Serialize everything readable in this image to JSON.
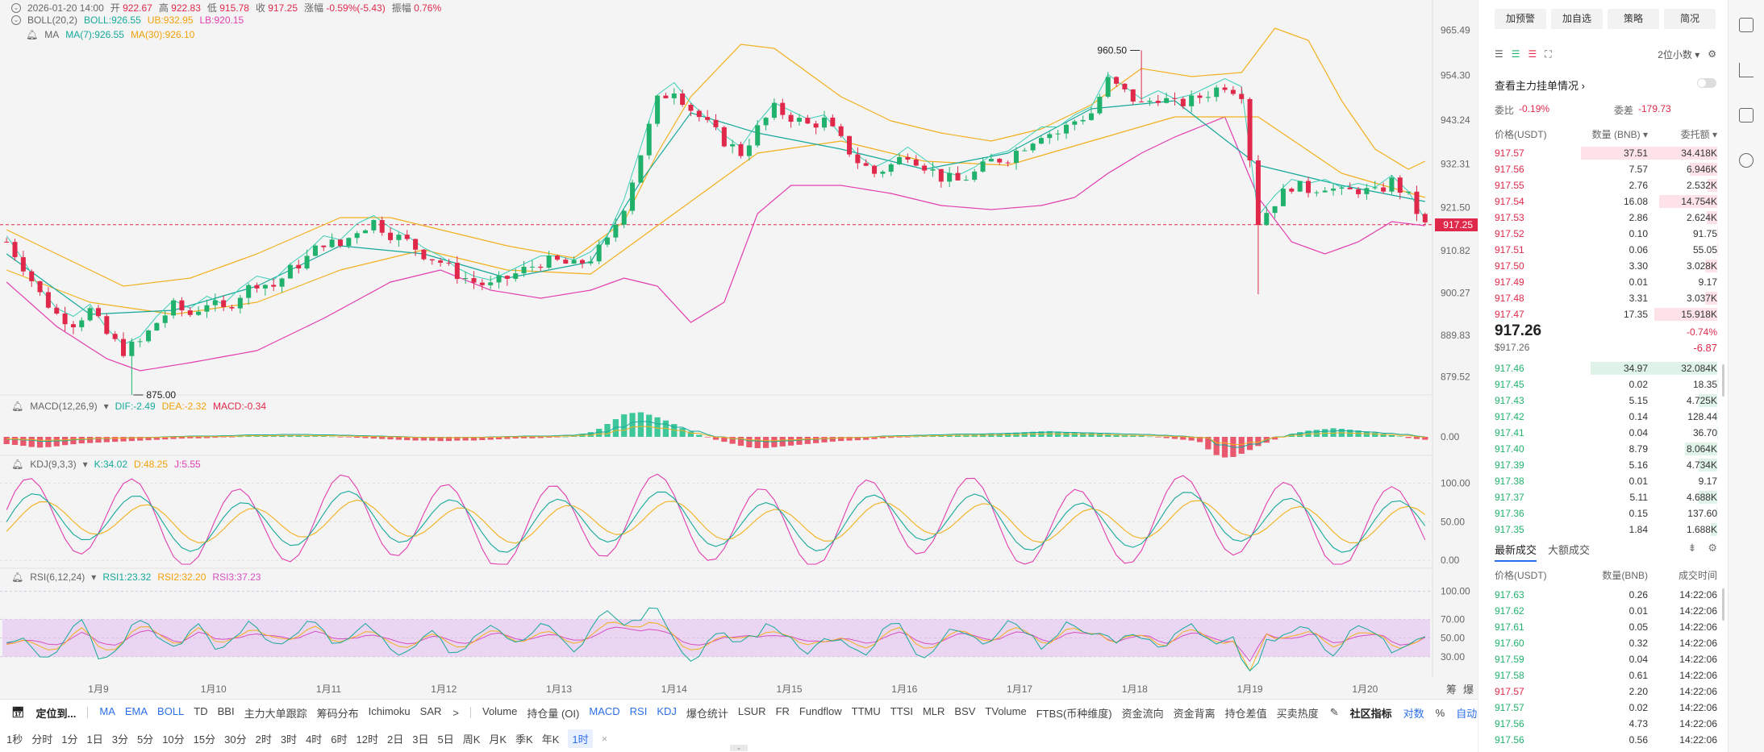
{
  "legend": {
    "ohlc": {
      "time": "2026-01-20 14:00",
      "open_label": "开",
      "open": "922.67",
      "high_label": "高",
      "high": "922.83",
      "low_label": "低",
      "low": "915.78",
      "close_label": "收",
      "close": "917.25",
      "change_label": "涨幅",
      "change": "-0.59%(-5.43)",
      "amp_label": "振幅",
      "amp": "0.76%"
    },
    "boll": {
      "name": "BOLL(20,2)",
      "boll": "BOLL:926.55",
      "ub": "UB:932.95",
      "lb": "LB:920.15"
    },
    "ma": {
      "name": "MA",
      "ma7": "MA(7):926.55",
      "ma30": "MA(30):926.10"
    },
    "macd": {
      "name": "MACD(12,26,9)",
      "dif": "DIF:-2.49",
      "dea": "DEA:-2.32",
      "macd": "MACD:-0.34"
    },
    "kdj": {
      "name": "KDJ(9,3,3)",
      "k": "K:34.02",
      "d": "D:48.25",
      "j": "J:5.55"
    },
    "rsi": {
      "name": "RSI(6,12,24)",
      "rsi1": "RSI1:23.32",
      "rsi2": "RSI2:32.20",
      "rsi3": "RSI3:37.23"
    }
  },
  "chart_data": {
    "type": "candlestick",
    "price_axis": [
      "965.49",
      "954.30",
      "943.24",
      "932.31",
      "921.50",
      "910.82",
      "900.27",
      "889.83",
      "879.52"
    ],
    "x_labels": [
      "1月9",
      "1月10",
      "1月11",
      "1月12",
      "1月13",
      "1月14",
      "1月15",
      "1月16",
      "1月17",
      "1月18",
      "1月19",
      "1月20"
    ],
    "current_price": "917.25",
    "high_marker": "960.50",
    "low_marker": "875.00",
    "ylim": [
      877,
      967
    ],
    "close_path": [
      [
        0,
        913
      ],
      [
        2,
        907
      ],
      [
        4,
        900
      ],
      [
        6,
        895
      ],
      [
        8,
        893
      ],
      [
        10,
        896
      ],
      [
        12,
        890
      ],
      [
        14,
        886
      ],
      [
        16,
        888
      ],
      [
        18,
        893
      ],
      [
        20,
        897
      ],
      [
        22,
        895
      ],
      [
        24,
        898
      ],
      [
        26,
        896
      ],
      [
        28,
        900
      ],
      [
        30,
        903
      ],
      [
        32,
        902
      ],
      [
        34,
        906
      ],
      [
        36,
        909
      ],
      [
        38,
        913
      ],
      [
        40,
        912
      ],
      [
        42,
        916
      ],
      [
        44,
        918
      ],
      [
        46,
        915
      ],
      [
        48,
        913
      ],
      [
        50,
        910
      ],
      [
        52,
        908
      ],
      [
        54,
        905
      ],
      [
        56,
        903
      ],
      [
        58,
        902
      ],
      [
        60,
        904
      ],
      [
        62,
        906
      ],
      [
        64,
        908
      ],
      [
        66,
        908
      ],
      [
        68,
        907
      ],
      [
        70,
        909
      ],
      [
        72,
        913
      ],
      [
        74,
        922
      ],
      [
        76,
        935
      ],
      [
        78,
        948
      ],
      [
        80,
        951
      ],
      [
        82,
        946
      ],
      [
        84,
        942
      ],
      [
        86,
        938
      ],
      [
        88,
        935
      ],
      [
        90,
        941
      ],
      [
        92,
        946
      ],
      [
        94,
        944
      ],
      [
        96,
        942
      ],
      [
        98,
        943
      ],
      [
        100,
        938
      ],
      [
        102,
        933
      ],
      [
        104,
        930
      ],
      [
        106,
        932
      ],
      [
        108,
        935
      ],
      [
        110,
        932
      ],
      [
        112,
        929
      ],
      [
        114,
        928
      ],
      [
        116,
        930
      ],
      [
        118,
        933
      ],
      [
        120,
        934
      ],
      [
        122,
        937
      ],
      [
        124,
        940
      ],
      [
        126,
        940
      ],
      [
        128,
        943
      ],
      [
        130,
        945
      ],
      [
        132,
        953
      ],
      [
        134,
        950
      ],
      [
        136,
        947
      ],
      [
        138,
        949
      ],
      [
        140,
        947
      ],
      [
        142,
        948
      ],
      [
        144,
        950
      ],
      [
        146,
        952
      ],
      [
        148,
        950
      ],
      [
        150,
        918
      ],
      [
        152,
        923
      ],
      [
        154,
        927
      ],
      [
        156,
        926
      ],
      [
        158,
        927
      ],
      [
        160,
        925
      ],
      [
        162,
        926
      ],
      [
        164,
        925
      ],
      [
        166,
        928
      ],
      [
        168,
        924
      ],
      [
        170,
        917
      ]
    ],
    "ma_slow_path": [
      [
        0,
        906
      ],
      [
        10,
        898
      ],
      [
        20,
        895
      ],
      [
        30,
        898
      ],
      [
        40,
        906
      ],
      [
        50,
        911
      ],
      [
        60,
        906
      ],
      [
        70,
        905
      ],
      [
        80,
        920
      ],
      [
        90,
        935
      ],
      [
        100,
        938
      ],
      [
        110,
        933
      ],
      [
        120,
        932
      ],
      [
        130,
        938
      ],
      [
        140,
        944
      ],
      [
        150,
        944
      ],
      [
        160,
        930
      ],
      [
        170,
        924
      ]
    ],
    "ma_fast_path": [
      [
        0,
        910
      ],
      [
        10,
        895
      ],
      [
        20,
        896
      ],
      [
        30,
        902
      ],
      [
        40,
        912
      ],
      [
        50,
        910
      ],
      [
        60,
        904
      ],
      [
        70,
        908
      ],
      [
        76,
        928
      ],
      [
        82,
        945
      ],
      [
        90,
        940
      ],
      [
        100,
        936
      ],
      [
        110,
        931
      ],
      [
        120,
        935
      ],
      [
        130,
        946
      ],
      [
        140,
        948
      ],
      [
        150,
        932
      ],
      [
        160,
        927
      ],
      [
        170,
        923
      ]
    ],
    "ub_path": [
      [
        0,
        916
      ],
      [
        8,
        908
      ],
      [
        14,
        902
      ],
      [
        22,
        904
      ],
      [
        30,
        910
      ],
      [
        40,
        919
      ],
      [
        46,
        919
      ],
      [
        52,
        916
      ],
      [
        60,
        912
      ],
      [
        68,
        909
      ],
      [
        74,
        918
      ],
      [
        78,
        935
      ],
      [
        82,
        949
      ],
      [
        88,
        962
      ],
      [
        92,
        961
      ],
      [
        96,
        955
      ],
      [
        100,
        949
      ],
      [
        106,
        943
      ],
      [
        112,
        940
      ],
      [
        118,
        938
      ],
      [
        124,
        941
      ],
      [
        130,
        947
      ],
      [
        136,
        956
      ],
      [
        142,
        954
      ],
      [
        148,
        955
      ],
      [
        152,
        966
      ],
      [
        156,
        963
      ],
      [
        160,
        948
      ],
      [
        164,
        936
      ],
      [
        168,
        931
      ],
      [
        170,
        933
      ]
    ],
    "lb_path": [
      [
        0,
        903
      ],
      [
        6,
        892
      ],
      [
        12,
        884
      ],
      [
        16,
        881
      ],
      [
        22,
        883
      ],
      [
        30,
        886
      ],
      [
        38,
        894
      ],
      [
        46,
        903
      ],
      [
        52,
        906
      ],
      [
        58,
        901
      ],
      [
        64,
        899
      ],
      [
        70,
        901
      ],
      [
        74,
        904
      ],
      [
        78,
        902
      ],
      [
        82,
        893
      ],
      [
        86,
        898
      ],
      [
        90,
        920
      ],
      [
        94,
        927
      ],
      [
        100,
        927
      ],
      [
        106,
        925
      ],
      [
        112,
        922
      ],
      [
        118,
        921
      ],
      [
        124,
        922
      ],
      [
        128,
        924
      ],
      [
        132,
        930
      ],
      [
        136,
        935
      ],
      [
        140,
        939
      ],
      [
        146,
        944
      ],
      [
        150,
        924
      ],
      [
        154,
        913
      ],
      [
        158,
        910
      ],
      [
        162,
        913
      ],
      [
        166,
        918
      ],
      [
        170,
        917
      ]
    ],
    "macd": {
      "axis": "0.00",
      "hist": [
        -1.0,
        -1.2,
        -1.5,
        -1.4,
        -1.1,
        -0.9,
        -0.8,
        -0.7,
        -0.6,
        -0.5,
        -0.4,
        -0.3,
        -0.2,
        -0.2,
        -0.1,
        0.0,
        0.1,
        0.1,
        0.2,
        0.2,
        0.1,
        0.1,
        0.0,
        -0.1,
        -0.2,
        -0.3,
        -0.4,
        -0.5,
        -0.5,
        -0.6,
        -0.5,
        -0.5,
        -0.4,
        -0.3,
        -0.2,
        -0.2,
        -0.1,
        0.0,
        0.3,
        0.8,
        2.0,
        3.2,
        3.4,
        2.8,
        2.0,
        1.0,
        0.2,
        -0.4,
        -0.9,
        -1.4,
        -1.6,
        -1.4,
        -1.2,
        -1.0,
        -0.8,
        -0.6,
        -0.5,
        -0.4,
        -0.2,
        -0.1,
        0.0,
        0.1,
        0.2,
        0.3,
        0.3,
        0.4,
        0.5,
        0.6,
        0.7,
        0.8,
        0.7,
        0.6,
        0.5,
        0.4,
        0.3,
        0.2,
        0.0,
        -0.2,
        -0.4,
        -0.6,
        -2.4,
        -3.0,
        -2.2,
        -1.2,
        -0.4,
        0.3,
        0.8,
        1.0,
        1.2,
        1.0,
        0.8,
        0.5,
        0.2,
        -0.2,
        -0.4
      ]
    },
    "kdj": {
      "axis": [
        "100.00",
        "50.00",
        "0.00"
      ],
      "ylim": [
        -5,
        115
      ]
    },
    "rsi": {
      "axis": [
        "100.00",
        "70.00",
        "50.00",
        "30.00"
      ],
      "ylim": [
        10,
        110
      ],
      "band": [
        30,
        70
      ]
    }
  },
  "toolbar1": {
    "locate": "定位到...",
    "main_indicators": [
      "MA",
      "EMA",
      "BOLL",
      "TD",
      "BBI",
      "主力大单跟踪",
      "筹码分布",
      "Ichimoku",
      "SAR"
    ],
    "more": ">",
    "sub_indicators": [
      "Volume",
      "持仓量 (OI)",
      "MACD",
      "RSI",
      "KDJ",
      "爆仓统计",
      "LSUR",
      "FR",
      "Fundflow",
      "TTMU",
      "TTSI",
      "MLR",
      "BSV",
      "TVolume",
      "FTBS(币种维度)",
      "资金流向",
      "资金背离",
      "持仓差值",
      "买卖热度"
    ],
    "community": "社区指标",
    "log": "对数",
    "percent": "%",
    "auto": "自动"
  },
  "toolbar2": {
    "intervals": [
      "1秒",
      "分时",
      "1分",
      "1日",
      "3分",
      "5分",
      "10分",
      "15分",
      "30分",
      "2时",
      "3时",
      "4时",
      "6时",
      "12时",
      "2日",
      "3日",
      "5日",
      "周K",
      "月K",
      "季K",
      "年K",
      "1时"
    ],
    "close": "×"
  },
  "corner": {
    "label1": "筹",
    "label2": "爆"
  },
  "panel": {
    "buttons": [
      "加预警",
      "加自选",
      "策略",
      "简况"
    ],
    "precision": "2位小数",
    "orderbook_title": "查看主力挂单情况",
    "ratio_label": "委比",
    "ratio": "-0.19%",
    "diff_label": "委差",
    "diff": "-179.73",
    "headers": [
      "价格(USDT)",
      "数量 (BNB)",
      "委托额"
    ],
    "asks": [
      {
        "price": "917.57",
        "qty": "37.51",
        "amount": "34.418K"
      },
      {
        "price": "917.56",
        "qty": "7.57",
        "amount": "6.946K"
      },
      {
        "price": "917.55",
        "qty": "2.76",
        "amount": "2.532K"
      },
      {
        "price": "917.54",
        "qty": "16.08",
        "amount": "14.754K"
      },
      {
        "price": "917.53",
        "qty": "2.86",
        "amount": "2.624K"
      },
      {
        "price": "917.52",
        "qty": "0.10",
        "amount": "91.75"
      },
      {
        "price": "917.51",
        "qty": "0.06",
        "amount": "55.05"
      },
      {
        "price": "917.50",
        "qty": "3.30",
        "amount": "3.028K"
      },
      {
        "price": "917.49",
        "qty": "0.01",
        "amount": "9.17"
      },
      {
        "price": "917.48",
        "qty": "3.31",
        "amount": "3.037K"
      },
      {
        "price": "917.47",
        "qty": "17.35",
        "amount": "15.918K"
      }
    ],
    "last_price": "917.26",
    "last_price_usd": "$917.26",
    "last_change_pct": "-0.74%",
    "last_change": "-6.87",
    "bids": [
      {
        "price": "917.46",
        "qty": "34.97",
        "amount": "32.084K"
      },
      {
        "price": "917.45",
        "qty": "0.02",
        "amount": "18.35"
      },
      {
        "price": "917.43",
        "qty": "5.15",
        "amount": "4.725K"
      },
      {
        "price": "917.42",
        "qty": "0.14",
        "amount": "128.44"
      },
      {
        "price": "917.41",
        "qty": "0.04",
        "amount": "36.70"
      },
      {
        "price": "917.40",
        "qty": "8.79",
        "amount": "8.064K"
      },
      {
        "price": "917.39",
        "qty": "5.16",
        "amount": "4.734K"
      },
      {
        "price": "917.38",
        "qty": "0.01",
        "amount": "9.17"
      },
      {
        "price": "917.37",
        "qty": "5.11",
        "amount": "4.688K"
      },
      {
        "price": "917.36",
        "qty": "0.15",
        "amount": "137.60"
      },
      {
        "price": "917.35",
        "qty": "1.84",
        "amount": "1.688K"
      }
    ],
    "trade_tabs": [
      "最新成交",
      "大额成交"
    ],
    "trade_headers": [
      "价格(USDT)",
      "数量(BNB)",
      "成交时间"
    ],
    "trades": [
      {
        "price": "917.63",
        "qty": "0.26",
        "time": "14:22:06",
        "side": "buy"
      },
      {
        "price": "917.62",
        "qty": "0.01",
        "time": "14:22:06",
        "side": "buy"
      },
      {
        "price": "917.61",
        "qty": "0.05",
        "time": "14:22:06",
        "side": "buy"
      },
      {
        "price": "917.60",
        "qty": "0.32",
        "time": "14:22:06",
        "side": "buy"
      },
      {
        "price": "917.59",
        "qty": "0.04",
        "time": "14:22:06",
        "side": "buy"
      },
      {
        "price": "917.58",
        "qty": "0.61",
        "time": "14:22:06",
        "side": "buy"
      },
      {
        "price": "917.57",
        "qty": "2.20",
        "time": "14:22:06",
        "side": "sell"
      },
      {
        "price": "917.57",
        "qty": "0.02",
        "time": "14:22:06",
        "side": "buy"
      },
      {
        "price": "917.56",
        "qty": "4.73",
        "time": "14:22:06",
        "side": "buy"
      },
      {
        "price": "917.56",
        "qty": "0.56",
        "time": "14:22:06",
        "side": "buy"
      }
    ]
  }
}
